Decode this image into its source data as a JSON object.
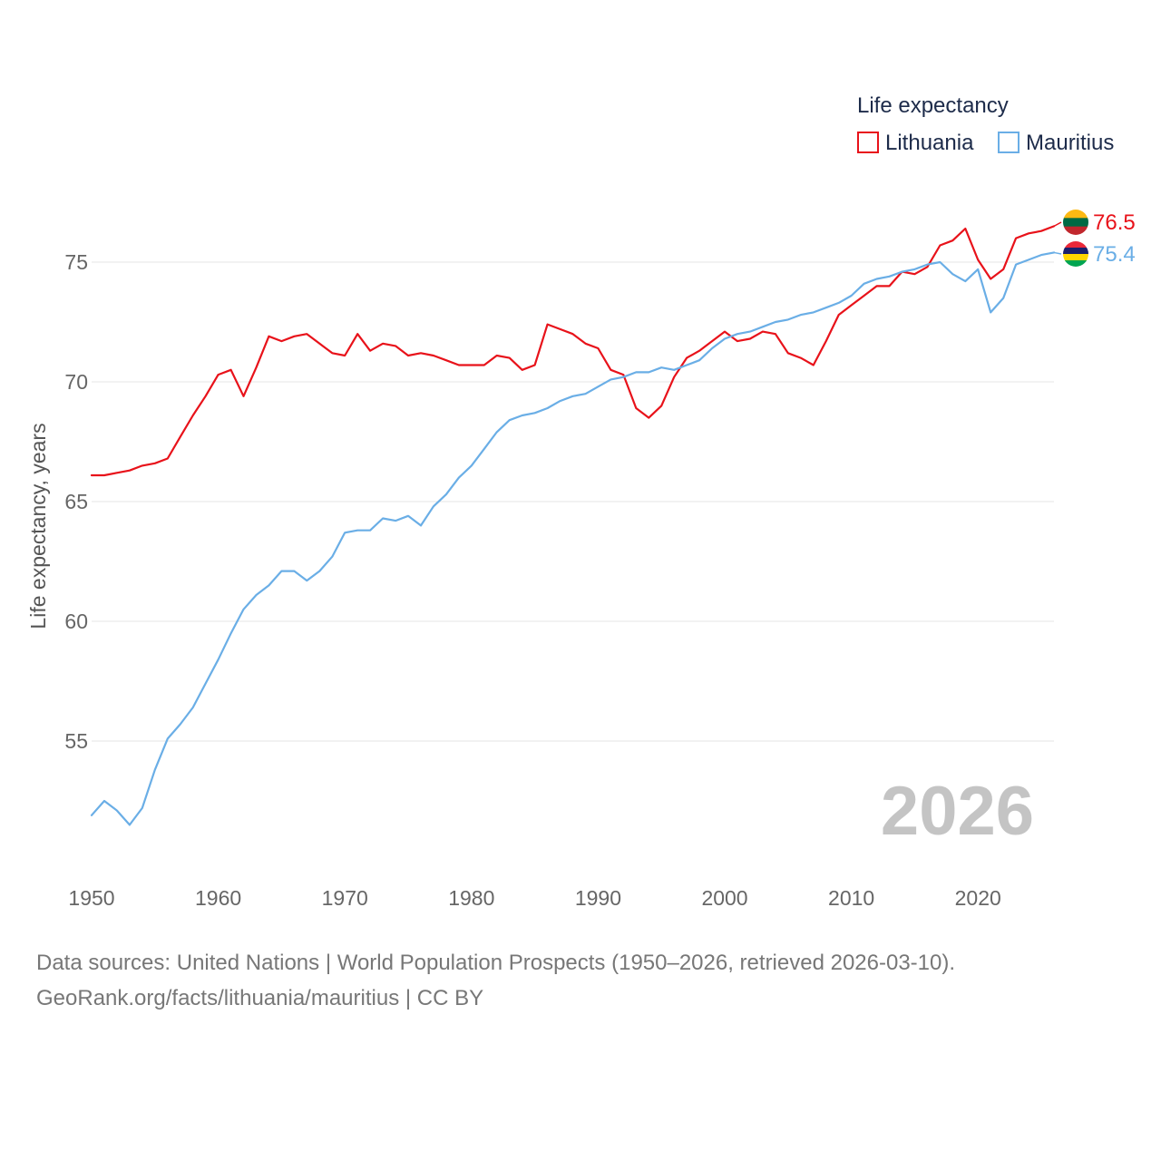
{
  "chart_data": {
    "type": "line",
    "title": "Life expectancy",
    "ylabel": "Life expectancy, years",
    "xlabel": "",
    "year_label": "2026",
    "xlim": [
      1950,
      2026
    ],
    "ylim": [
      50,
      78
    ],
    "x_ticks": [
      1950,
      1960,
      1970,
      1980,
      1990,
      2000,
      2010,
      2020
    ],
    "y_ticks": [
      55,
      60,
      65,
      70,
      75
    ],
    "grid": true,
    "legend": "top-right",
    "x": [
      1950,
      1951,
      1952,
      1953,
      1954,
      1955,
      1956,
      1957,
      1958,
      1959,
      1960,
      1961,
      1962,
      1963,
      1964,
      1965,
      1966,
      1967,
      1968,
      1969,
      1970,
      1971,
      1972,
      1973,
      1974,
      1975,
      1976,
      1977,
      1978,
      1979,
      1980,
      1981,
      1982,
      1983,
      1984,
      1985,
      1986,
      1987,
      1988,
      1989,
      1990,
      1991,
      1992,
      1993,
      1994,
      1995,
      1996,
      1997,
      1998,
      1999,
      2000,
      2001,
      2002,
      2003,
      2004,
      2005,
      2006,
      2007,
      2008,
      2009,
      2010,
      2011,
      2012,
      2013,
      2014,
      2015,
      2016,
      2017,
      2018,
      2019,
      2020,
      2021,
      2022,
      2023,
      2024,
      2025,
      2026
    ],
    "series": [
      {
        "name": "Lithuania",
        "color": "#e8121a",
        "end_label": "76.5",
        "flag": "lithuania-flag-icon",
        "values": [
          66.1,
          66.1,
          66.2,
          66.3,
          66.5,
          66.6,
          66.8,
          67.7,
          68.6,
          69.4,
          70.3,
          70.5,
          69.4,
          70.6,
          71.9,
          71.7,
          71.9,
          72.0,
          71.6,
          71.2,
          71.1,
          72.0,
          71.3,
          71.6,
          71.5,
          71.1,
          71.2,
          71.1,
          70.9,
          70.7,
          70.7,
          70.7,
          71.1,
          71.0,
          70.5,
          70.7,
          72.4,
          72.2,
          72.0,
          71.6,
          71.4,
          70.5,
          70.3,
          68.9,
          68.5,
          69.0,
          70.2,
          71.0,
          71.3,
          71.7,
          72.1,
          71.7,
          71.8,
          72.1,
          72.0,
          71.2,
          71.0,
          70.7,
          71.7,
          72.8,
          73.2,
          73.6,
          74.0,
          74.0,
          74.6,
          74.5,
          74.8,
          75.7,
          75.9,
          76.4,
          75.1,
          74.3,
          74.7,
          76.0,
          76.2,
          76.3,
          76.5
        ]
      },
      {
        "name": "Mauritius",
        "color": "#6aaee6",
        "end_label": "75.4",
        "flag": "mauritius-flag-icon",
        "values": [
          51.9,
          52.5,
          52.1,
          51.5,
          52.2,
          53.8,
          55.1,
          55.7,
          56.4,
          57.4,
          58.4,
          59.5,
          60.5,
          61.1,
          61.5,
          62.1,
          62.1,
          61.7,
          62.1,
          62.7,
          63.7,
          63.8,
          63.8,
          64.3,
          64.2,
          64.4,
          64.0,
          64.8,
          65.3,
          66.0,
          66.5,
          67.2,
          67.9,
          68.4,
          68.6,
          68.7,
          68.9,
          69.2,
          69.4,
          69.5,
          69.8,
          70.1,
          70.2,
          70.4,
          70.4,
          70.6,
          70.5,
          70.7,
          70.9,
          71.4,
          71.8,
          72.0,
          72.1,
          72.3,
          72.5,
          72.6,
          72.8,
          72.9,
          73.1,
          73.3,
          73.6,
          74.1,
          74.3,
          74.4,
          74.6,
          74.7,
          74.9,
          75.0,
          74.5,
          74.2,
          74.7,
          72.9,
          73.5,
          74.9,
          75.1,
          75.3,
          75.4
        ]
      }
    ]
  },
  "footer": {
    "line1": "Data sources: United Nations | World Population Prospects (1950–2026, retrieved 2026-03-10).",
    "line2": "GeoRank.org/facts/lithuania/mauritius | CC BY"
  }
}
